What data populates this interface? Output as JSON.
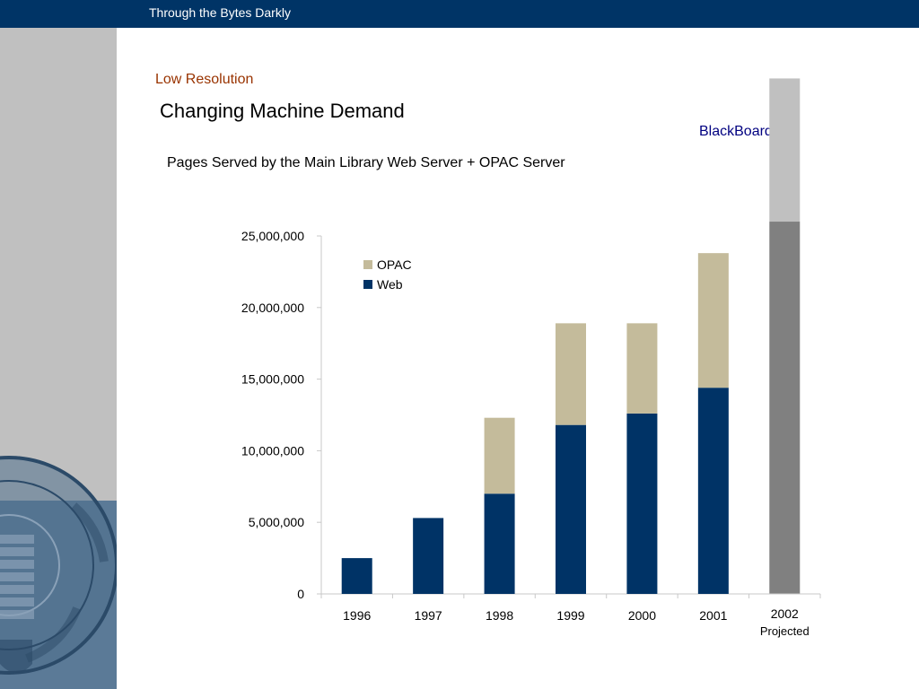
{
  "header": {
    "title": "Through the Bytes Darkly"
  },
  "slide": {
    "subtitle": "Low Resolution",
    "title": "Changing Machine Demand",
    "annotation": "BlackBoard"
  },
  "colors": {
    "header_bg": "#003466",
    "left_panel": "#c0c0c0",
    "left_panel_lower": "#5b7a97",
    "web": "#003366",
    "opac": "#c4bb9b",
    "projected_top": "#c0c0c0",
    "projected_base": "#808080"
  },
  "chart_data": {
    "type": "bar",
    "stacked": true,
    "title": "Pages Served by the Main Library Web Server + OPAC Server",
    "xlabel": "",
    "ylabel": "",
    "categories": [
      "1996",
      "1997",
      "1998",
      "1999",
      "2000",
      "2001",
      "2002"
    ],
    "category_notes": [
      "",
      "",
      "",
      "",
      "",
      "",
      "Projected"
    ],
    "series": [
      {
        "name": "Web",
        "values": [
          2500000,
          5300000,
          7000000,
          11800000,
          12600000,
          14400000,
          null
        ]
      },
      {
        "name": "OPAC",
        "values": [
          0,
          0,
          5300000,
          7100000,
          6300000,
          9400000,
          null
        ]
      }
    ],
    "projected": {
      "category": "2002",
      "base_value": 26000000,
      "top_value": 36000000
    },
    "ylim": [
      0,
      25000000
    ],
    "yticks": [
      0,
      5000000,
      10000000,
      15000000,
      20000000,
      25000000
    ],
    "ytick_labels": [
      "0",
      "5,000,000",
      "10,000,000",
      "15,000,000",
      "20,000,000",
      "25,000,000"
    ],
    "legend": {
      "position": "top-left",
      "entries": [
        "OPAC",
        "Web"
      ]
    },
    "grid": false
  }
}
